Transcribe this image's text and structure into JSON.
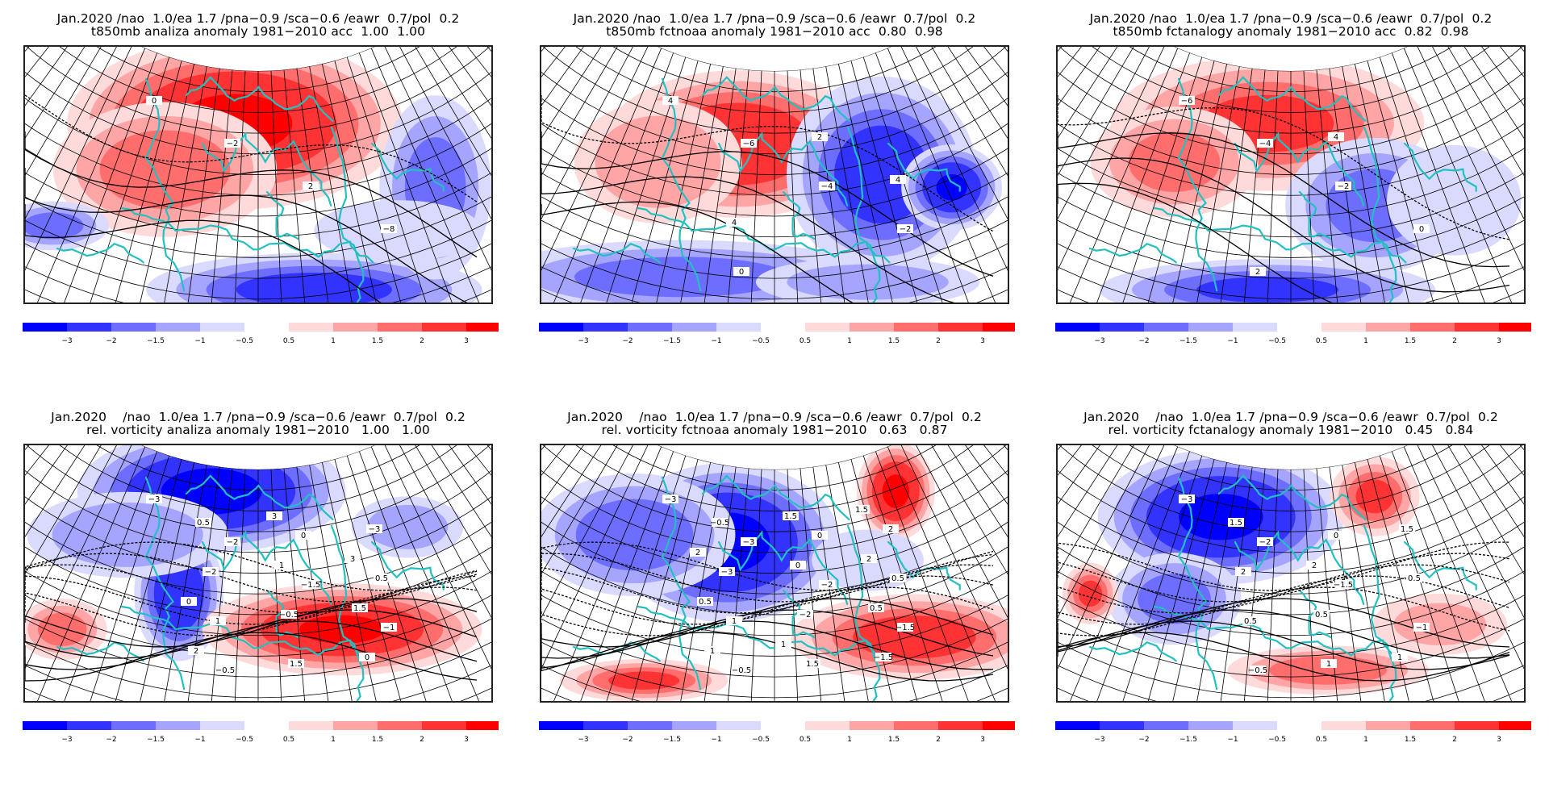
{
  "figure": {
    "header_line": "Jan.2020 /nao  1.0/ea 1.7 /pna−0.9 /sca−0.6 /eawr  0.7/pol  0.2",
    "header_line_wide": "Jan.2020    /nao  1.0/ea 1.7 /pna−0.9 /sca−0.6 /eawr  0.7/pol  0.2"
  },
  "chart_data": [
    {
      "type": "heatmap",
      "panel": "top-left",
      "title": "Jan.2020 /nao  1.0/ea 1.7 /pna−0.9 /sca−0.6 /eawr  0.7/pol  0.2",
      "subtitle": "t850mb analiza anomaly 1981−2010 acc  1.00  1.00",
      "variable": "t850mb",
      "source": "analiza",
      "climatology": "1981−2010",
      "acc": [
        1.0,
        1.0
      ],
      "contour_labels": [
        "0",
        "−2",
        "2",
        "−8"
      ],
      "pattern": "strong warm anomaly over northern/central Europe and Scandinavia; cold anomaly over southern Mediterranean/North Africa and far east",
      "legend": "bottom"
    },
    {
      "type": "heatmap",
      "panel": "top-center",
      "title": "Jan.2020 /nao  1.0/ea 1.7 /pna−0.9 /sca−0.6 /eawr  0.7/pol  0.2",
      "subtitle": "t850mb fctnoaa anomaly 1981−2010 acc  0.80  0.98",
      "variable": "t850mb",
      "source": "fctnoaa",
      "climatology": "1981−2010",
      "acc": [
        0.8,
        0.98
      ],
      "contour_labels": [
        "4",
        "−6",
        "−4",
        "−2",
        "0",
        "2",
        "4",
        "4"
      ],
      "pattern": "warm anomaly over central/northern Europe; strong cold anomaly over eastern Europe/Russia and southern margin",
      "legend": "bottom"
    },
    {
      "type": "heatmap",
      "panel": "top-right",
      "title": "Jan.2020 /nao  1.0/ea 1.7 /pna−0.9 /sca−0.6 /eawr  0.7/pol  0.2",
      "subtitle": "t850mb fctanalogy anomaly 1981−2010 acc  0.82  0.98",
      "variable": "t850mb",
      "source": "fctanalogy",
      "climatology": "1981−2010",
      "acc": [
        0.82,
        0.98
      ],
      "contour_labels": [
        "−6",
        "−4",
        "−2",
        "0",
        "2",
        "4"
      ],
      "pattern": "moderate warm anomaly over central/northern Europe; moderate cold anomaly to the east and south",
      "legend": "bottom"
    },
    {
      "type": "heatmap",
      "panel": "bottom-left",
      "title": "Jan.2020    /nao  1.0/ea 1.7 /pna−0.9 /sca−0.6 /eawr  0.7/pol  0.2",
      "subtitle": "rel. vorticity analiza anomaly 1981−2010   1.00   1.00",
      "variable": "rel. vorticity",
      "source": "analiza",
      "climatology": "1981−2010",
      "acc": [
        1.0,
        1.0
      ],
      "contour_labels": [
        "−3",
        "−2",
        "−1.5",
        "−1",
        "−0.5",
        "0",
        "0.5",
        "1",
        "1.5",
        "−3",
        "−2",
        "−0.5",
        "0",
        "0.5",
        "1",
        "1.5",
        "2",
        "3",
        "3",
        "0"
      ],
      "pattern": "strong negative vorticity over northern Europe and a trough to the west; positive anomaly over southern/eastern Europe",
      "legend": "bottom"
    },
    {
      "type": "heatmap",
      "panel": "bottom-center",
      "title": "Jan.2020    /nao  1.0/ea 1.7 /pna−0.9 /sca−0.6 /eawr  0.7/pol  0.2",
      "subtitle": "rel. vorticity fctnoaa anomaly 1981−2010   0.63   0.87",
      "variable": "rel. vorticity",
      "source": "fctnoaa",
      "climatology": "1981−2010",
      "acc": [
        0.63,
        0.87
      ],
      "contour_labels": [
        "−3",
        "−3",
        "−2",
        "−1.5",
        "−0.5",
        "0",
        "0.5",
        "1",
        "1.5",
        "2",
        "−3",
        "−2",
        "−1.5",
        "−0.5",
        "0",
        "0.5",
        "1",
        "1.5",
        "2",
        "0.5",
        "1",
        "1.5",
        "2"
      ],
      "pattern": "strong negative vorticity over northern/central Europe; positive anomaly in northeast and southeast",
      "legend": "bottom"
    },
    {
      "type": "heatmap",
      "panel": "bottom-right",
      "title": "Jan.2020    /nao  1.0/ea 1.7 /pna−0.9 /sca−0.6 /eawr  0.7/pol  0.2",
      "subtitle": "rel. vorticity fctanalogy anomaly 1981−2010   0.45   0.84",
      "variable": "rel. vorticity",
      "source": "fctanalogy",
      "climatology": "1981−2010",
      "acc": [
        0.45,
        0.84
      ],
      "contour_labels": [
        "−3",
        "−2",
        "−1.5",
        "−1",
        "−0.5",
        "0",
        "0.5",
        "0.5",
        "1",
        "1.5",
        "2",
        "0.5",
        "1",
        "1.5",
        "2"
      ],
      "pattern": "negative vorticity over northern Europe; weaker positive anomalies northeast and southeast",
      "legend": "bottom"
    }
  ],
  "colorbar": {
    "negative": [
      {
        "color": "#0000ff",
        "label": ""
      },
      {
        "color": "#3333ff",
        "label": "−3"
      },
      {
        "color": "#6d6dff",
        "label": "−2"
      },
      {
        "color": "#a5a5ff",
        "label": "−1.5"
      },
      {
        "color": "#dadaff",
        "label": "−1"
      }
    ],
    "negative_end_label": "−0.5",
    "positive": [
      {
        "color": "#ffdada",
        "label": "0.5"
      },
      {
        "color": "#ffa5a5",
        "label": "1"
      },
      {
        "color": "#ff6d6d",
        "label": "1.5"
      },
      {
        "color": "#ff3333",
        "label": "2"
      },
      {
        "color": "#ff0000",
        "label": "3"
      }
    ],
    "colors": {
      "coast": "#22c0c0",
      "grid": "#000000",
      "contour": "#000000"
    }
  }
}
